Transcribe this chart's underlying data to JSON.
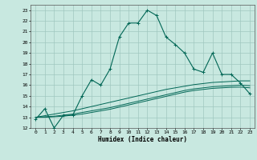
{
  "xlabel": "Humidex (Indice chaleur)",
  "xlim": [
    -0.5,
    23.5
  ],
  "ylim": [
    12,
    23.5
  ],
  "yticks": [
    12,
    13,
    14,
    15,
    16,
    17,
    18,
    19,
    20,
    21,
    22,
    23
  ],
  "xticks": [
    0,
    1,
    2,
    3,
    4,
    5,
    6,
    7,
    8,
    9,
    10,
    11,
    12,
    13,
    14,
    15,
    16,
    17,
    18,
    19,
    20,
    21,
    22,
    23
  ],
  "bg_color": "#c8e8e0",
  "grid_color": "#a0c8c0",
  "line_color": "#006655",
  "main_y": [
    12.8,
    13.8,
    12.0,
    13.2,
    13.2,
    15.0,
    16.5,
    16.0,
    17.5,
    20.5,
    21.8,
    21.8,
    23.0,
    22.5,
    20.5,
    19.8,
    19.0,
    17.5,
    17.2,
    19.0,
    17.0,
    17.0,
    16.2,
    15.2
  ],
  "trend1_y": [
    13.0,
    13.15,
    13.3,
    13.45,
    13.6,
    13.8,
    14.0,
    14.2,
    14.4,
    14.6,
    14.8,
    15.0,
    15.2,
    15.4,
    15.6,
    15.75,
    15.9,
    16.05,
    16.15,
    16.25,
    16.3,
    16.35,
    16.4,
    16.4
  ],
  "trend2_y": [
    13.0,
    13.05,
    13.1,
    13.2,
    13.3,
    13.45,
    13.6,
    13.75,
    13.9,
    14.1,
    14.3,
    14.5,
    14.7,
    14.9,
    15.1,
    15.3,
    15.5,
    15.65,
    15.75,
    15.85,
    15.9,
    15.95,
    16.0,
    15.95
  ],
  "trend3_y": [
    13.0,
    13.0,
    13.05,
    13.1,
    13.2,
    13.3,
    13.45,
    13.6,
    13.75,
    13.95,
    14.15,
    14.35,
    14.55,
    14.75,
    14.95,
    15.15,
    15.35,
    15.5,
    15.6,
    15.7,
    15.75,
    15.8,
    15.82,
    15.75
  ]
}
